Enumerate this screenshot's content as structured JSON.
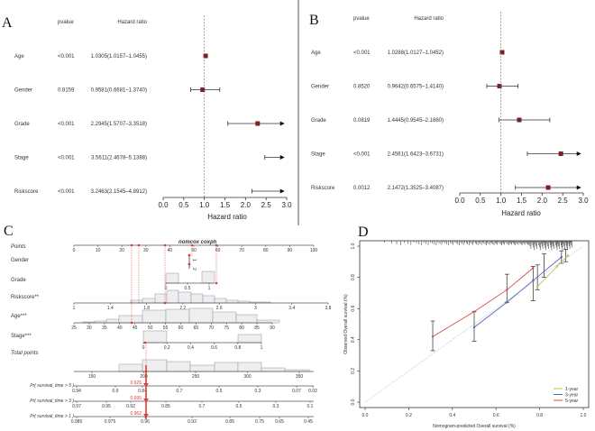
{
  "chart_data": [
    {
      "type": "forest",
      "panel_label": "A",
      "col_pvalue": "pvalue",
      "col_hr": "Hazard ratio",
      "xlabel": "Hazard ratio",
      "xlim": [
        0,
        3
      ],
      "ticks": [
        "0.0",
        "0.5",
        "1.0",
        "1.5",
        "2.0",
        "2.5",
        "3.0"
      ],
      "rows": [
        {
          "name": "Age",
          "pvalue": "<0.001",
          "hr_text": "1.0305(1.0157–1.0455)",
          "hr": 1.0305,
          "lo": 1.0157,
          "hi": 1.0455
        },
        {
          "name": "Gender",
          "pvalue": "0.8159",
          "hr_text": "0.9581(0.6681–1.3740)",
          "hr": 0.9581,
          "lo": 0.6681,
          "hi": 1.374
        },
        {
          "name": "Grade",
          "pvalue": "<0.001",
          "hr_text": "2.2945(1.5707–3.3518)",
          "hr": 2.2945,
          "lo": 1.5707,
          "hi": 3.3518
        },
        {
          "name": "Stage",
          "pvalue": "<0.001",
          "hr_text": "3.5611(2.4678–5.1388)",
          "hr": 3.5611,
          "lo": 2.4678,
          "hi": 5.1388
        },
        {
          "name": "Riskscore",
          "pvalue": "<0.001",
          "hr_text": "3.2463(2.1545–4.8912)",
          "hr": 3.2463,
          "lo": 2.1545,
          "hi": 4.8912
        }
      ]
    },
    {
      "type": "forest",
      "panel_label": "B",
      "col_pvalue": "pvalue",
      "col_hr": "Hazard ratio",
      "xlabel": "Hazard ratio",
      "xlim": [
        0,
        3
      ],
      "ticks": [
        "0.0",
        "0.5",
        "1.0",
        "1.5",
        "2.0",
        "2.5",
        "3.0"
      ],
      "rows": [
        {
          "name": "Age",
          "pvalue": "<0.001",
          "hr_text": "1.0288(1.0127–1.0452)",
          "hr": 1.0288,
          "lo": 1.0127,
          "hi": 1.0452
        },
        {
          "name": "Gender",
          "pvalue": "0.8520",
          "hr_text": "0.9642(0.6575–1.4140)",
          "hr": 0.9642,
          "lo": 0.6575,
          "hi": 1.414
        },
        {
          "name": "Grade",
          "pvalue": "0.0819",
          "hr_text": "1.4445(0.9545–2.1860)",
          "hr": 1.4445,
          "lo": 0.9545,
          "hi": 2.186
        },
        {
          "name": "Stage",
          "pvalue": "<0.001",
          "hr_text": "2.4561(1.6423–3.6731)",
          "hr": 2.4561,
          "lo": 1.6423,
          "hi": 3.6731
        },
        {
          "name": "Riskscore",
          "pvalue": "0.0012",
          "hr_text": "2.1472(1.3525–3.4087)",
          "hr": 2.1472,
          "lo": 1.3525,
          "hi": 3.4087
        }
      ]
    },
    {
      "type": "nomogram",
      "panel_label": "C",
      "title": "nomcox coxph",
      "points_label": "Points",
      "points_ticks": [
        "0",
        "10",
        "20",
        "30",
        "40",
        "50",
        "60",
        "70",
        "80",
        "90",
        "100"
      ],
      "gender_label": "Gender",
      "gender_ticks": [
        "1",
        "2"
      ],
      "grade_label": "Grade",
      "grade_ticks": [
        "0",
        "0.5",
        "1"
      ],
      "riskscore_label": "Riskscore**",
      "riskscore_ticks": [
        "1",
        "1.4",
        "1.8",
        "2.2",
        "2.6",
        "3",
        "3.4",
        "3.8"
      ],
      "age_label": "Age***",
      "age_ticks": [
        "25",
        "30",
        "35",
        "40",
        "45",
        "50",
        "55",
        "60",
        "65",
        "70",
        "75",
        "80",
        "85",
        "90"
      ],
      "stage_label": "Stage***",
      "stage_ticks": [
        "0",
        "0.2",
        "0.4",
        "0.6",
        "0.8",
        "1"
      ],
      "total_label": "Total points",
      "total_ticks": [
        "150",
        "200",
        "250",
        "300",
        "350"
      ],
      "surv5_label": "Pr( survival_time > 5 )",
      "surv5_ticks": [
        "0.94",
        "0.9",
        "0.84",
        "0.7",
        "0.5",
        "0.3",
        "0.07",
        "0.02"
      ],
      "surv5_value": "0.626",
      "surv3_label": "Pr( survival_time > 3 )",
      "surv3_ticks": [
        "0.97",
        "0.95",
        "0.92",
        "0.85",
        "0.7",
        "0.5",
        "0.3",
        "0.1"
      ],
      "surv3_value": "0.695",
      "surv1_label": "Pr( survival_time > 1 )",
      "surv1_ticks": [
        "0.985",
        "0.975",
        "0.96",
        "0.92",
        "0.85",
        "0.75",
        "0.65",
        "0.45"
      ],
      "surv1_value": "0.962"
    },
    {
      "type": "line",
      "panel_label": "D",
      "xlabel": "Nomogram-predicted Overall survival (%)",
      "ylabel": "Observed Overall survival (%)",
      "xlim": [
        0,
        1
      ],
      "ylim": [
        0,
        1
      ],
      "xticks": [
        "0.0",
        "0.2",
        "0.4",
        "0.6",
        "0.8",
        "1.0"
      ],
      "yticks": [
        "0.0",
        "0.2",
        "0.4",
        "0.6",
        "0.8",
        "1.0"
      ],
      "legend_position": "bottom-right",
      "series": [
        {
          "name": "1-year",
          "color": "#b9c94a",
          "x": [
            0.79,
            0.88,
            0.93
          ],
          "y": [
            0.74,
            0.87,
            0.94
          ]
        },
        {
          "name": "3-year",
          "color": "#5566bb",
          "x": [
            0.5,
            0.65,
            0.77,
            0.9
          ],
          "y": [
            0.48,
            0.64,
            0.78,
            0.93
          ]
        },
        {
          "name": "5-year",
          "color": "#d94a4a",
          "x": [
            0.31,
            0.5,
            0.65,
            0.77
          ],
          "y": [
            0.42,
            0.58,
            0.72,
            0.86
          ]
        }
      ],
      "error_bars": [
        {
          "x": 0.31,
          "y": 0.42,
          "lo": 0.33,
          "hi": 0.52
        },
        {
          "x": 0.5,
          "y": 0.48,
          "lo": 0.39,
          "hi": 0.58
        },
        {
          "x": 0.65,
          "y": 0.72,
          "lo": 0.64,
          "hi": 0.82
        },
        {
          "x": 0.77,
          "y": 0.78,
          "lo": 0.65,
          "hi": 0.87
        },
        {
          "x": 0.79,
          "y": 0.8,
          "lo": 0.72,
          "hi": 0.88
        },
        {
          "x": 0.82,
          "y": 0.86,
          "lo": 0.8,
          "hi": 0.95
        },
        {
          "x": 0.9,
          "y": 0.93,
          "lo": 0.89,
          "hi": 0.97
        },
        {
          "x": 0.92,
          "y": 0.94,
          "lo": 0.9,
          "hi": 0.98
        }
      ]
    }
  ],
  "colors": {
    "marker": "#7a1f22",
    "ref": "#999999",
    "red": "#e03a2f",
    "hist": "#eeeeee",
    "hist_edge": "#8c93b0"
  }
}
